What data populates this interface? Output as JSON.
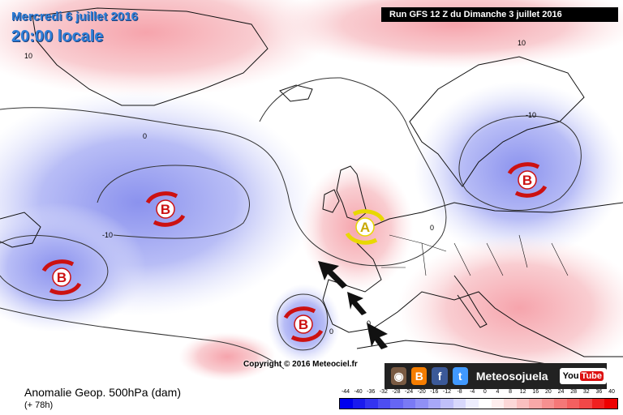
{
  "header": {
    "date": "Mercredi 6 juillet 2016",
    "time": "20:00 locale",
    "run": "Run GFS 12 Z du Dimanche 3 juillet 2016"
  },
  "map": {
    "title": "Anomalie Geop. 500hPa (dam)",
    "lead": "(+ 78h)",
    "contour_labels": [
      "10",
      "10",
      "0",
      "0",
      "-10",
      "-10",
      "0",
      "0"
    ],
    "systems": [
      {
        "label": "B",
        "kind": "low"
      },
      {
        "label": "B",
        "kind": "low"
      },
      {
        "label": "B",
        "kind": "low"
      },
      {
        "label": "B",
        "kind": "low"
      },
      {
        "label": "A",
        "kind": "high"
      }
    ],
    "colors": {
      "negative": "#6e78e6",
      "positive": "#f0a0a8",
      "high_arrows": "#f0e000",
      "low_arrows": "#cc1111"
    }
  },
  "copyright": "Copyright © 2016 Meteociel.fr",
  "branding": {
    "name": "Meteosojuela",
    "icons": [
      "instagram-icon",
      "blogger-icon",
      "facebook-icon",
      "twitter-icon",
      "youtube-icon"
    ],
    "youtube_you": "You",
    "youtube_tube": "Tube"
  },
  "legend": {
    "ticks": [
      "-44",
      "-40",
      "-36",
      "-32",
      "-28",
      "-24",
      "-20",
      "-16",
      "-12",
      "-8",
      "-4",
      "0",
      "4",
      "8",
      "12",
      "16",
      "20",
      "24",
      "28",
      "32",
      "36",
      "40"
    ],
    "colors": [
      "#0000ee",
      "#1a1aee",
      "#3333f0",
      "#4d4df2",
      "#6666f4",
      "#7a7af5",
      "#9090f6",
      "#a8a8f8",
      "#c0c0fa",
      "#d8d8fc",
      "#eeeefe",
      "#ffffff",
      "#feeeee",
      "#fcd8d8",
      "#fac0c0",
      "#f8a8a8",
      "#f69090",
      "#f57878",
      "#f46060",
      "#f24848",
      "#f02020",
      "#ee0000"
    ]
  }
}
